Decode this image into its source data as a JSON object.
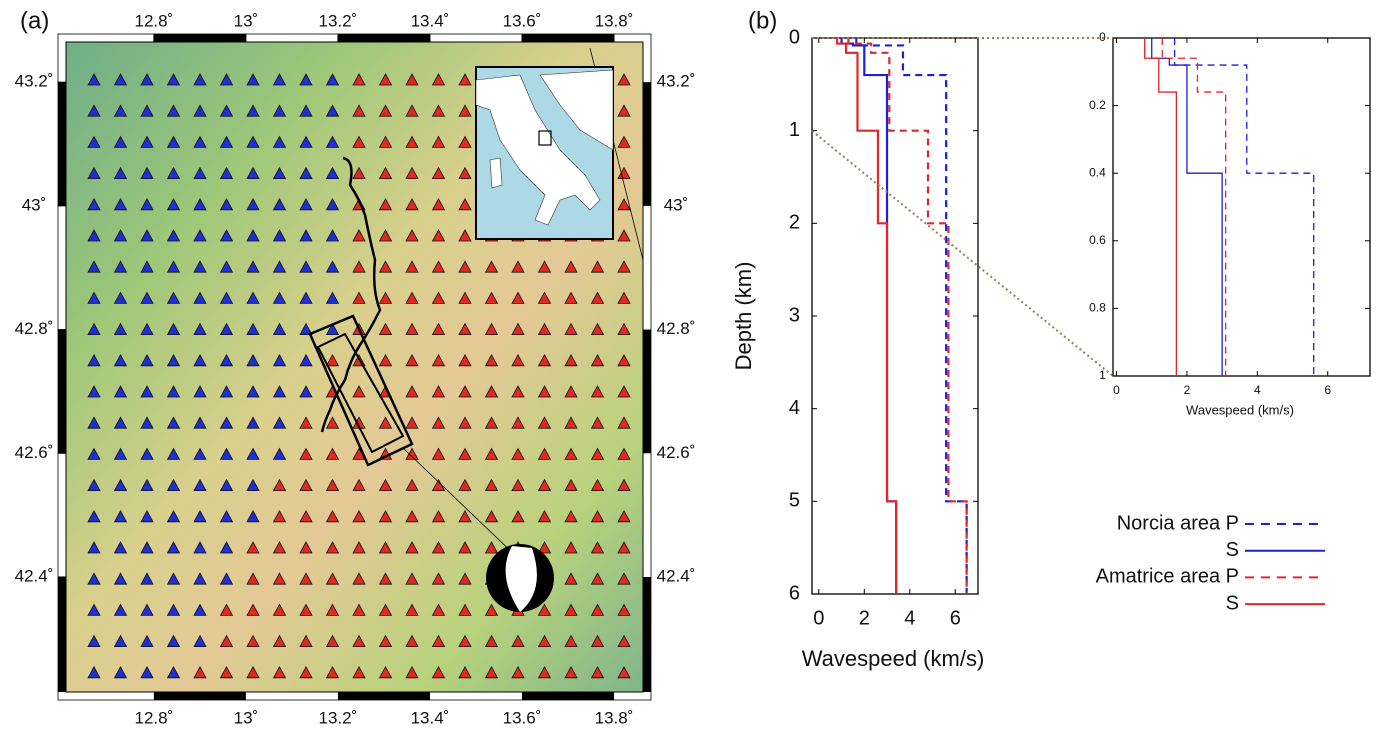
{
  "chart_data": [
    {
      "type": "map",
      "label": "(a)",
      "xlim": [
        12.609,
        13.863
      ],
      "ylim": [
        42.214,
        43.265
      ],
      "xticks": [
        {
          "value": 12.8,
          "label": "12.8˚"
        },
        {
          "value": 13,
          "label": "13˚"
        },
        {
          "value": 13.2,
          "label": "13.2˚"
        },
        {
          "value": 13.4,
          "label": "13.4˚"
        },
        {
          "value": 13.6,
          "label": "13.6˚"
        },
        {
          "value": 13.8,
          "label": "13.8˚"
        }
      ],
      "yticks": [
        {
          "value": 42.4,
          "label": "42.4˚"
        },
        {
          "value": 42.6,
          "label": "42.6˚"
        },
        {
          "value": 42.8,
          "label": "42.8˚"
        },
        {
          "value": 43,
          "label": "43˚"
        },
        {
          "value": 43.2,
          "label": "43.2˚"
        }
      ]
    },
    {
      "type": "line",
      "label": "(b)",
      "xlabel": "Wavespeed (km/s)",
      "ylabel": "Depth (km)",
      "xlim": [
        -0.3,
        7
      ],
      "ylim": [
        0,
        6
      ],
      "invert_y": true,
      "xticks": [
        0,
        2,
        4,
        6
      ],
      "yticks": [
        0,
        1,
        2,
        3,
        4,
        5,
        6
      ],
      "series": [
        {
          "name": "Norcia area P",
          "color": "#1f1fd6",
          "dash": true,
          "x": [
            1.65,
            1.65,
            3.7,
            3.7,
            5.6,
            5.6,
            6.5,
            6.5
          ],
          "y": [
            0,
            0.08,
            0.08,
            0.4,
            0.4,
            5,
            5,
            6
          ]
        },
        {
          "name": "S",
          "color": "#1f1fd6",
          "dash": false,
          "x": [
            1.0,
            1.0,
            1.5,
            1.5,
            2.0,
            2.0,
            3.0,
            3.0,
            3.4,
            3.4
          ],
          "y": [
            0,
            0.06,
            0.06,
            0.08,
            0.08,
            0.4,
            0.4,
            5,
            5,
            6
          ]
        },
        {
          "name": "Amatrice area P",
          "color": "#e3262a",
          "dash": true,
          "x": [
            1.3,
            1.3,
            2.3,
            2.3,
            3.1,
            3.1,
            4.8,
            4.8,
            5.7,
            5.7,
            6.5,
            6.5
          ],
          "y": [
            0,
            0.06,
            0.06,
            0.16,
            0.16,
            1,
            1,
            2,
            2,
            5,
            5,
            6
          ]
        },
        {
          "name": "S",
          "color": "#e3262a",
          "dash": false,
          "x": [
            0.8,
            0.8,
            1.2,
            1.2,
            1.7,
            1.7,
            2.6,
            2.6,
            3.0,
            3.0,
            3.4,
            3.4
          ],
          "y": [
            0,
            0.06,
            0.06,
            0.16,
            0.16,
            1,
            1,
            2,
            2,
            5,
            5,
            6
          ]
        }
      ]
    },
    {
      "type": "line",
      "xlabel": "Wavespeed (km/s)",
      "xlim": [
        -0.1,
        7.2
      ],
      "ylim": [
        0,
        1
      ],
      "invert_y": true,
      "xticks": [
        0,
        2,
        4,
        6
      ],
      "yticks": [
        0,
        0.2,
        0.4,
        0.6,
        0.8,
        1
      ],
      "series": [
        {
          "color": "#1f1fd6",
          "dash": true,
          "x": [
            1.65,
            1.65,
            3.7,
            3.7,
            5.6,
            5.6
          ],
          "y": [
            0,
            0.08,
            0.08,
            0.4,
            0.4,
            1
          ]
        },
        {
          "color": "#1f1fd6",
          "dash": false,
          "x": [
            1.0,
            1.0,
            1.5,
            1.5,
            2.0,
            2.0,
            3.0,
            3.0
          ],
          "y": [
            0,
            0.06,
            0.06,
            0.08,
            0.08,
            0.4,
            0.4,
            1
          ]
        },
        {
          "color": "#e3262a",
          "dash": true,
          "x": [
            1.3,
            1.3,
            2.3,
            2.3,
            3.1,
            3.1
          ],
          "y": [
            0,
            0.06,
            0.06,
            0.16,
            0.16,
            1
          ]
        },
        {
          "color": "#e3262a",
          "dash": false,
          "x": [
            0.8,
            0.8,
            1.2,
            1.2,
            1.7,
            1.7
          ],
          "y": [
            0,
            0.06,
            0.06,
            0.16,
            0.16,
            1
          ]
        }
      ]
    }
  ]
}
